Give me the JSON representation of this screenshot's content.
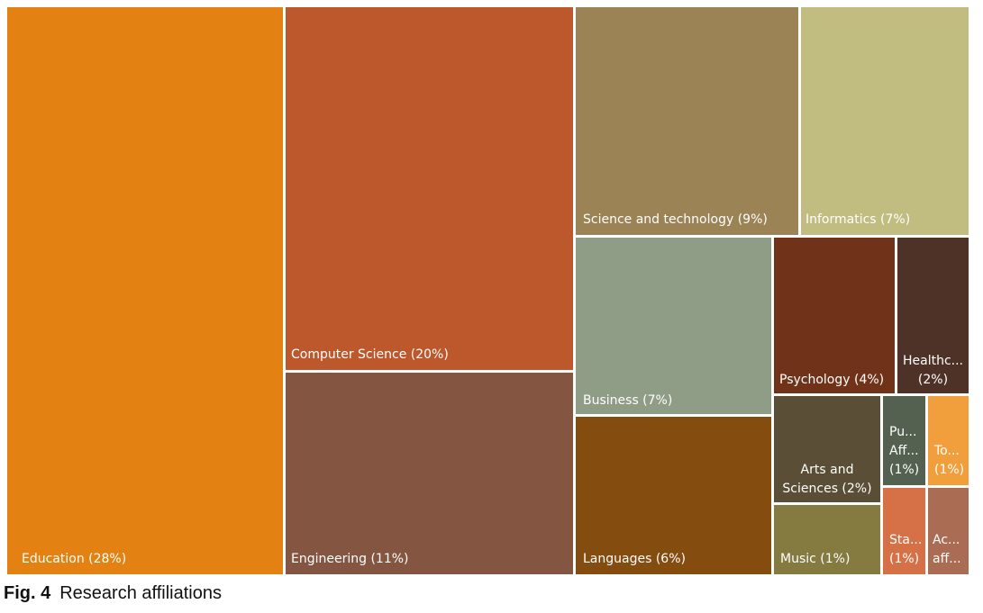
{
  "caption": {
    "figure_number": "Fig. 4",
    "text": "Research affiliations"
  },
  "chart_data": {
    "type": "treemap",
    "title": "",
    "unit": "%",
    "items": [
      {
        "name": "Education",
        "value": 28,
        "label": "Education (28%)",
        "color": "#E38212"
      },
      {
        "name": "Computer Science",
        "value": 20,
        "label": "Computer Science (20%)",
        "color": "#BD572C"
      },
      {
        "name": "Engineering",
        "value": 11,
        "label": "Engineering (11%)",
        "color": "#845641"
      },
      {
        "name": "Science and technology",
        "value": 9,
        "label": "Science and technology (9%)",
        "color": "#9B8356"
      },
      {
        "name": "Informatics",
        "value": 7,
        "label": "Informatics (7%)",
        "color": "#C1BD81"
      },
      {
        "name": "Business",
        "value": 7,
        "label": "Business (7%)",
        "color": "#8F9C86"
      },
      {
        "name": "Languages",
        "value": 6,
        "label": "Languages (6%)",
        "color": "#854C0F"
      },
      {
        "name": "Psychology",
        "value": 4,
        "label": "Psychology (4%)",
        "color": "#70331A"
      },
      {
        "name": "Healthc...",
        "value": 2,
        "label": "Healthc...\n(2%)",
        "color": "#4E3227"
      },
      {
        "name": "Arts and Sciences",
        "value": 2,
        "label": "Arts and\nSciences (2%)",
        "color": "#5A4E37"
      },
      {
        "name": "Music",
        "value": 1,
        "label": "Music (1%)",
        "color": "#857A40"
      },
      {
        "name": "Pu... Aff...",
        "value": 1,
        "label": "Pu...\nAff...\n(1%)",
        "color": "#546150"
      },
      {
        "name": "To...",
        "value": 1,
        "label": "To...\n(1%)",
        "color": "#F19F3D"
      },
      {
        "name": "Sta...",
        "value": 1,
        "label": "Sta...\n(1%)",
        "color": "#D67147"
      },
      {
        "name": "Ac... aff...",
        "value": 1,
        "label": "Ac...\naff...",
        "color": "#AA6C52"
      }
    ]
  }
}
